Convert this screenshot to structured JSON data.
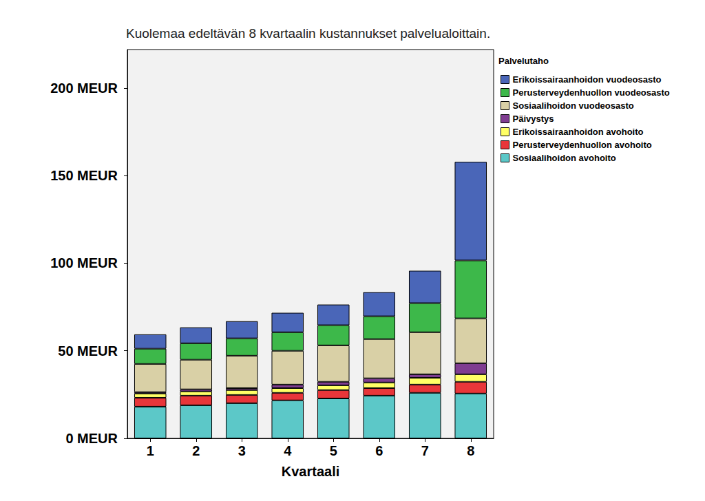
{
  "chart_data": {
    "type": "bar",
    "stacked": true,
    "title": "Kuolemaa edeltävän 8 kvartaalin kustannukset palvelualoittain.",
    "x_label": "Kvartaali",
    "legend_title": "Palvelutaho",
    "legend": "right",
    "categories": [
      "1",
      "2",
      "3",
      "4",
      "5",
      "6",
      "7",
      "8"
    ],
    "ylim": [
      0,
      222
    ],
    "yticks": [
      {
        "value": 0,
        "label": "0 MEUR"
      },
      {
        "value": 50,
        "label": "50 MEUR"
      },
      {
        "value": 100,
        "label": "100 MEUR"
      },
      {
        "value": 150,
        "label": "150 MEUR"
      },
      {
        "value": 200,
        "label": "200 MEUR"
      }
    ],
    "grid": false,
    "series": [
      {
        "name": "Sosiaalihoidon avohoito",
        "color": "#5cc8c8",
        "values": [
          18.1,
          18.9,
          20.1,
          21.7,
          22.8,
          24.4,
          26.0,
          25.6
        ]
      },
      {
        "name": "Perusterveydenhuollon avohoito",
        "color": "#e8363a",
        "values": [
          5.1,
          5.5,
          4.7,
          4.3,
          4.8,
          4.3,
          4.7,
          6.7
        ]
      },
      {
        "name": "Erikoissairaanhoidon avohoito",
        "color": "#ffff66",
        "values": [
          2.4,
          2.4,
          2.8,
          2.7,
          2.7,
          3.2,
          3.9,
          4.3
        ]
      },
      {
        "name": "Päivystys",
        "color": "#7f3d91",
        "values": [
          0.8,
          1.2,
          1.1,
          2.0,
          2.0,
          2.4,
          2.0,
          6.3
        ]
      },
      {
        "name": "Sosiaalihoidon vuodeosasto",
        "color": "#d9d0a6",
        "values": [
          16.1,
          16.9,
          18.5,
          19.3,
          20.8,
          22.4,
          24.0,
          25.6
        ]
      },
      {
        "name": "Perusterveydenhuollon vuodeosasto",
        "color": "#3db84a",
        "values": [
          8.7,
          9.4,
          9.9,
          10.6,
          11.5,
          13.0,
          16.6,
          33.1
        ]
      },
      {
        "name": "Erikoissairaanhoidon vuodeosasto",
        "color": "#4a66b8",
        "values": [
          8.2,
          9.1,
          9.8,
          11.1,
          11.8,
          13.8,
          18.5,
          56.3
        ]
      }
    ]
  }
}
